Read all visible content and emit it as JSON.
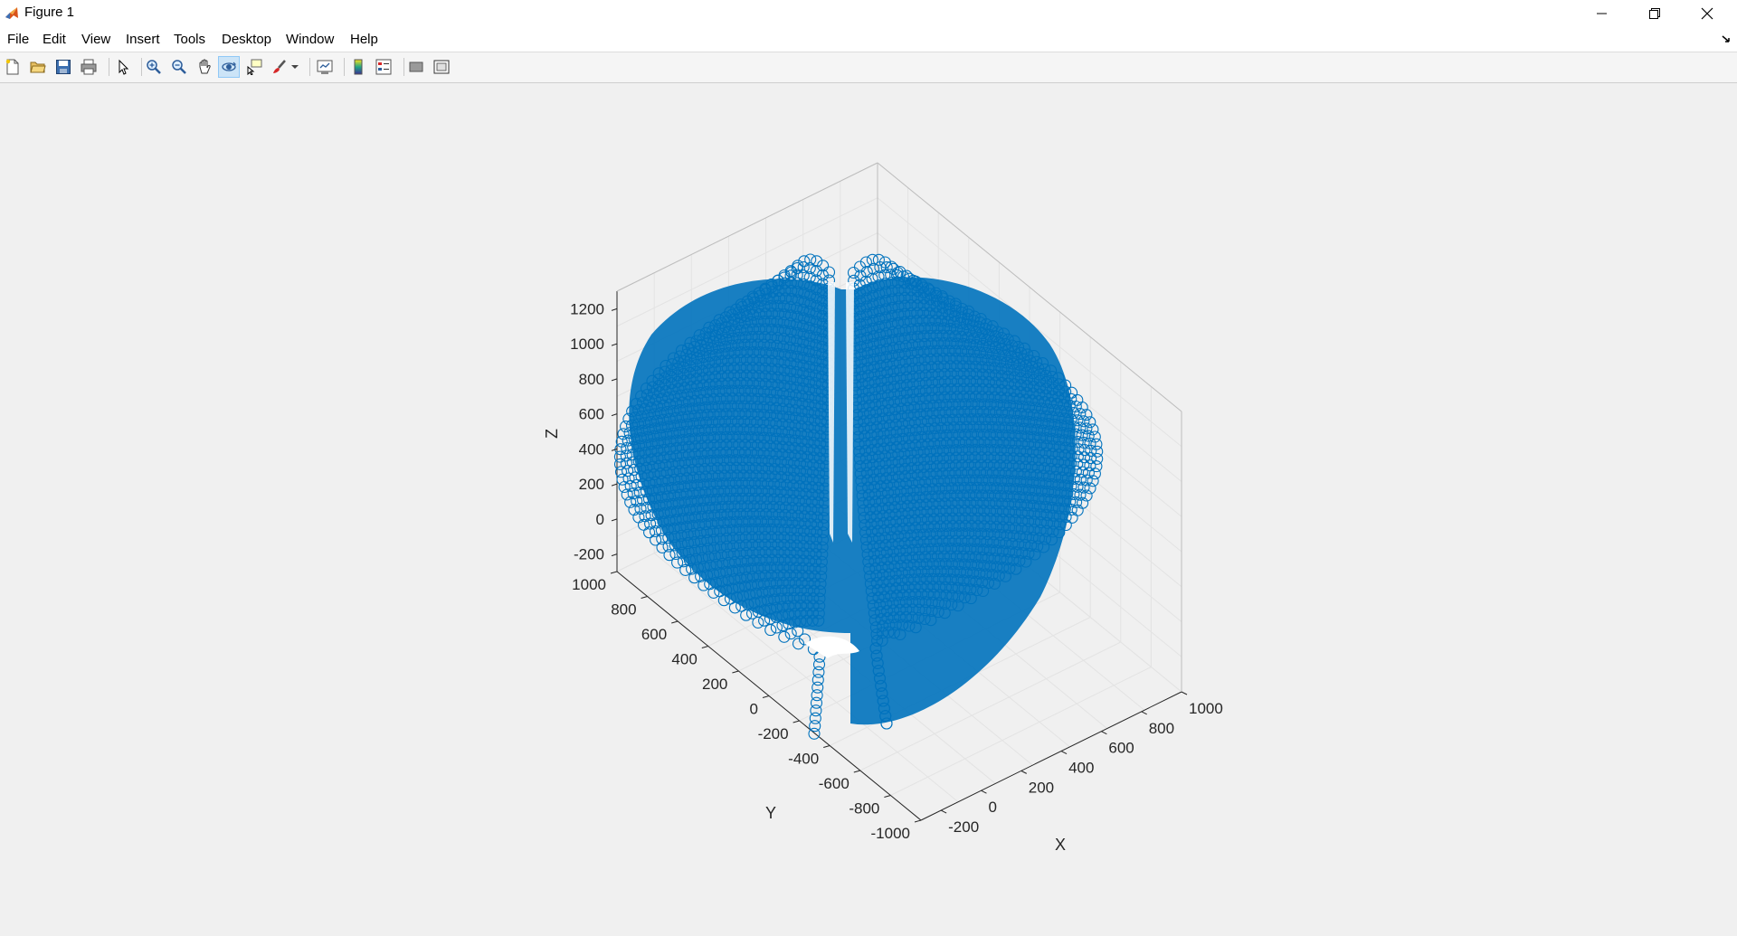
{
  "window": {
    "title": "Figure 1",
    "icon": "matlab-logo-icon"
  },
  "menu": [
    "File",
    "Edit",
    "View",
    "Insert",
    "Tools",
    "Desktop",
    "Window",
    "Help"
  ],
  "toolbar": {
    "buttons": [
      {
        "icon": "new-figure-icon"
      },
      {
        "icon": "open-file-icon"
      },
      {
        "icon": "save-icon"
      },
      {
        "icon": "print-icon"
      },
      {
        "icon": "edit-plot-pointer-icon"
      },
      {
        "icon": "zoom-in-icon"
      },
      {
        "icon": "zoom-out-icon"
      },
      {
        "icon": "pan-hand-icon"
      },
      {
        "icon": "rotate-3d-icon",
        "active": true
      },
      {
        "icon": "data-cursor-icon"
      },
      {
        "icon": "brush-icon"
      },
      {
        "icon": "link-plot-icon"
      },
      {
        "icon": "insert-colorbar-icon"
      },
      {
        "icon": "insert-legend-icon"
      },
      {
        "icon": "hide-plot-tools-icon"
      },
      {
        "icon": "show-plot-tools-icon"
      }
    ]
  },
  "chart_data": {
    "type": "scatter",
    "is_3d": true,
    "marker": "circle",
    "color": "#0072BD",
    "xlabel": "X",
    "ylabel": "Y",
    "zlabel": "Z",
    "x_ticks": [
      "-200",
      "0",
      "200",
      "400",
      "600",
      "800",
      "1000"
    ],
    "y_ticks": [
      "-1000",
      "-800",
      "-600",
      "-400",
      "-200",
      "0",
      "200",
      "400",
      "600",
      "800",
      "1000"
    ],
    "z_ticks": [
      "-200",
      "0",
      "200",
      "400",
      "600",
      "800",
      "1000",
      "1200"
    ],
    "xlim": [
      -300,
      1000
    ],
    "ylim": [
      -1000,
      1000
    ],
    "zlim": [
      -300,
      1300
    ],
    "grid": true,
    "shape": "dense heart-shaped point cloud (toroidal surface) viewed from above"
  }
}
